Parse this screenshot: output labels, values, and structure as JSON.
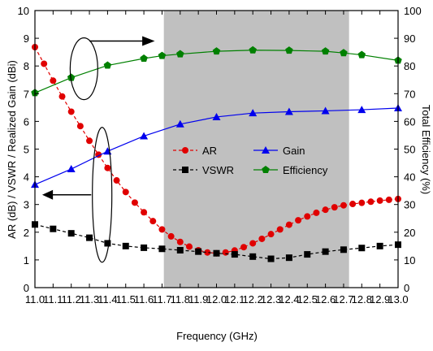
{
  "chart_data": {
    "type": "line",
    "xlabel": "Frequency (GHz)",
    "ylabel_left": "AR (dB) / VSWR / Realized Gain (dBi)",
    "ylabel_right": "Total Efficiency (%)",
    "xlim": [
      11.0,
      13.0
    ],
    "ylim_left": [
      0,
      10
    ],
    "ylim_right": [
      0,
      100
    ],
    "x_ticks": [
      "11.0",
      "11.1",
      "11.2",
      "11.3",
      "11.4",
      "11.5",
      "11.6",
      "11.7",
      "11.8",
      "11.9",
      "12.0",
      "12.1",
      "12.2",
      "12.3",
      "12.4",
      "12.5",
      "12.6",
      "12.7",
      "12.8",
      "12.9",
      "13.0"
    ],
    "y_ticks_left": [
      "0",
      "1",
      "2",
      "3",
      "4",
      "5",
      "6",
      "7",
      "8",
      "9",
      "10"
    ],
    "y_ticks_right": [
      "0",
      "10",
      "20",
      "30",
      "40",
      "50",
      "60",
      "70",
      "80",
      "90",
      "100"
    ],
    "shaded_band": {
      "x_start": 11.71,
      "x_end": 12.73,
      "color": "#c0c0c0"
    },
    "legend_placement": "center-right",
    "series": [
      {
        "name": "AR",
        "axis": "left",
        "color": "#e00000",
        "marker": "circle",
        "dash": "dashed",
        "x": [
          11.0,
          11.05,
          11.1,
          11.15,
          11.2,
          11.25,
          11.3,
          11.35,
          11.4,
          11.45,
          11.5,
          11.55,
          11.6,
          11.65,
          11.7,
          11.75,
          11.8,
          11.85,
          11.9,
          11.95,
          12.0,
          12.05,
          12.1,
          12.15,
          12.2,
          12.25,
          12.3,
          12.35,
          12.4,
          12.45,
          12.5,
          12.55,
          12.6,
          12.65,
          12.7,
          12.75,
          12.8,
          12.85,
          12.9,
          12.95,
          13.0
        ],
        "y": [
          8.68,
          8.08,
          7.47,
          6.9,
          6.35,
          5.83,
          5.3,
          4.8,
          4.32,
          3.87,
          3.45,
          3.07,
          2.72,
          2.4,
          2.1,
          1.85,
          1.65,
          1.48,
          1.35,
          1.27,
          1.24,
          1.27,
          1.34,
          1.46,
          1.6,
          1.76,
          1.93,
          2.1,
          2.27,
          2.43,
          2.57,
          2.7,
          2.81,
          2.9,
          2.97,
          3.02,
          3.06,
          3.1,
          3.14,
          3.17,
          3.2
        ]
      },
      {
        "name": "Gain",
        "axis": "left",
        "color": "#0000ee",
        "marker": "triangle",
        "dash": "solid",
        "x": [
          11.0,
          11.2,
          11.4,
          11.6,
          11.8,
          12.0,
          12.2,
          12.4,
          12.6,
          12.8,
          13.0
        ],
        "y": [
          3.72,
          4.28,
          4.92,
          5.47,
          5.9,
          6.16,
          6.3,
          6.35,
          6.38,
          6.42,
          6.48
        ]
      },
      {
        "name": "VSWR",
        "axis": "left",
        "color": "#000000",
        "marker": "square",
        "dash": "dashed",
        "x": [
          11.0,
          11.1,
          11.2,
          11.3,
          11.4,
          11.5,
          11.6,
          11.7,
          11.8,
          11.9,
          12.0,
          12.1,
          12.2,
          12.3,
          12.4,
          12.5,
          12.6,
          12.7,
          12.8,
          12.9,
          13.0
        ],
        "y": [
          2.28,
          2.12,
          1.96,
          1.8,
          1.6,
          1.5,
          1.44,
          1.4,
          1.35,
          1.3,
          1.24,
          1.2,
          1.12,
          1.04,
          1.08,
          1.2,
          1.3,
          1.37,
          1.43,
          1.5,
          1.55
        ]
      },
      {
        "name": "Efficiency",
        "axis": "right",
        "color": "#008000",
        "marker": "pentagon",
        "dash": "solid",
        "x": [
          11.0,
          11.2,
          11.4,
          11.6,
          11.7,
          11.8,
          12.0,
          12.2,
          12.4,
          12.6,
          12.7,
          12.8,
          13.0
        ],
        "y": [
          70.3,
          75.8,
          80.2,
          82.7,
          83.7,
          84.3,
          85.3,
          85.7,
          85.6,
          85.3,
          84.7,
          84.0,
          82.0
        ]
      }
    ]
  }
}
